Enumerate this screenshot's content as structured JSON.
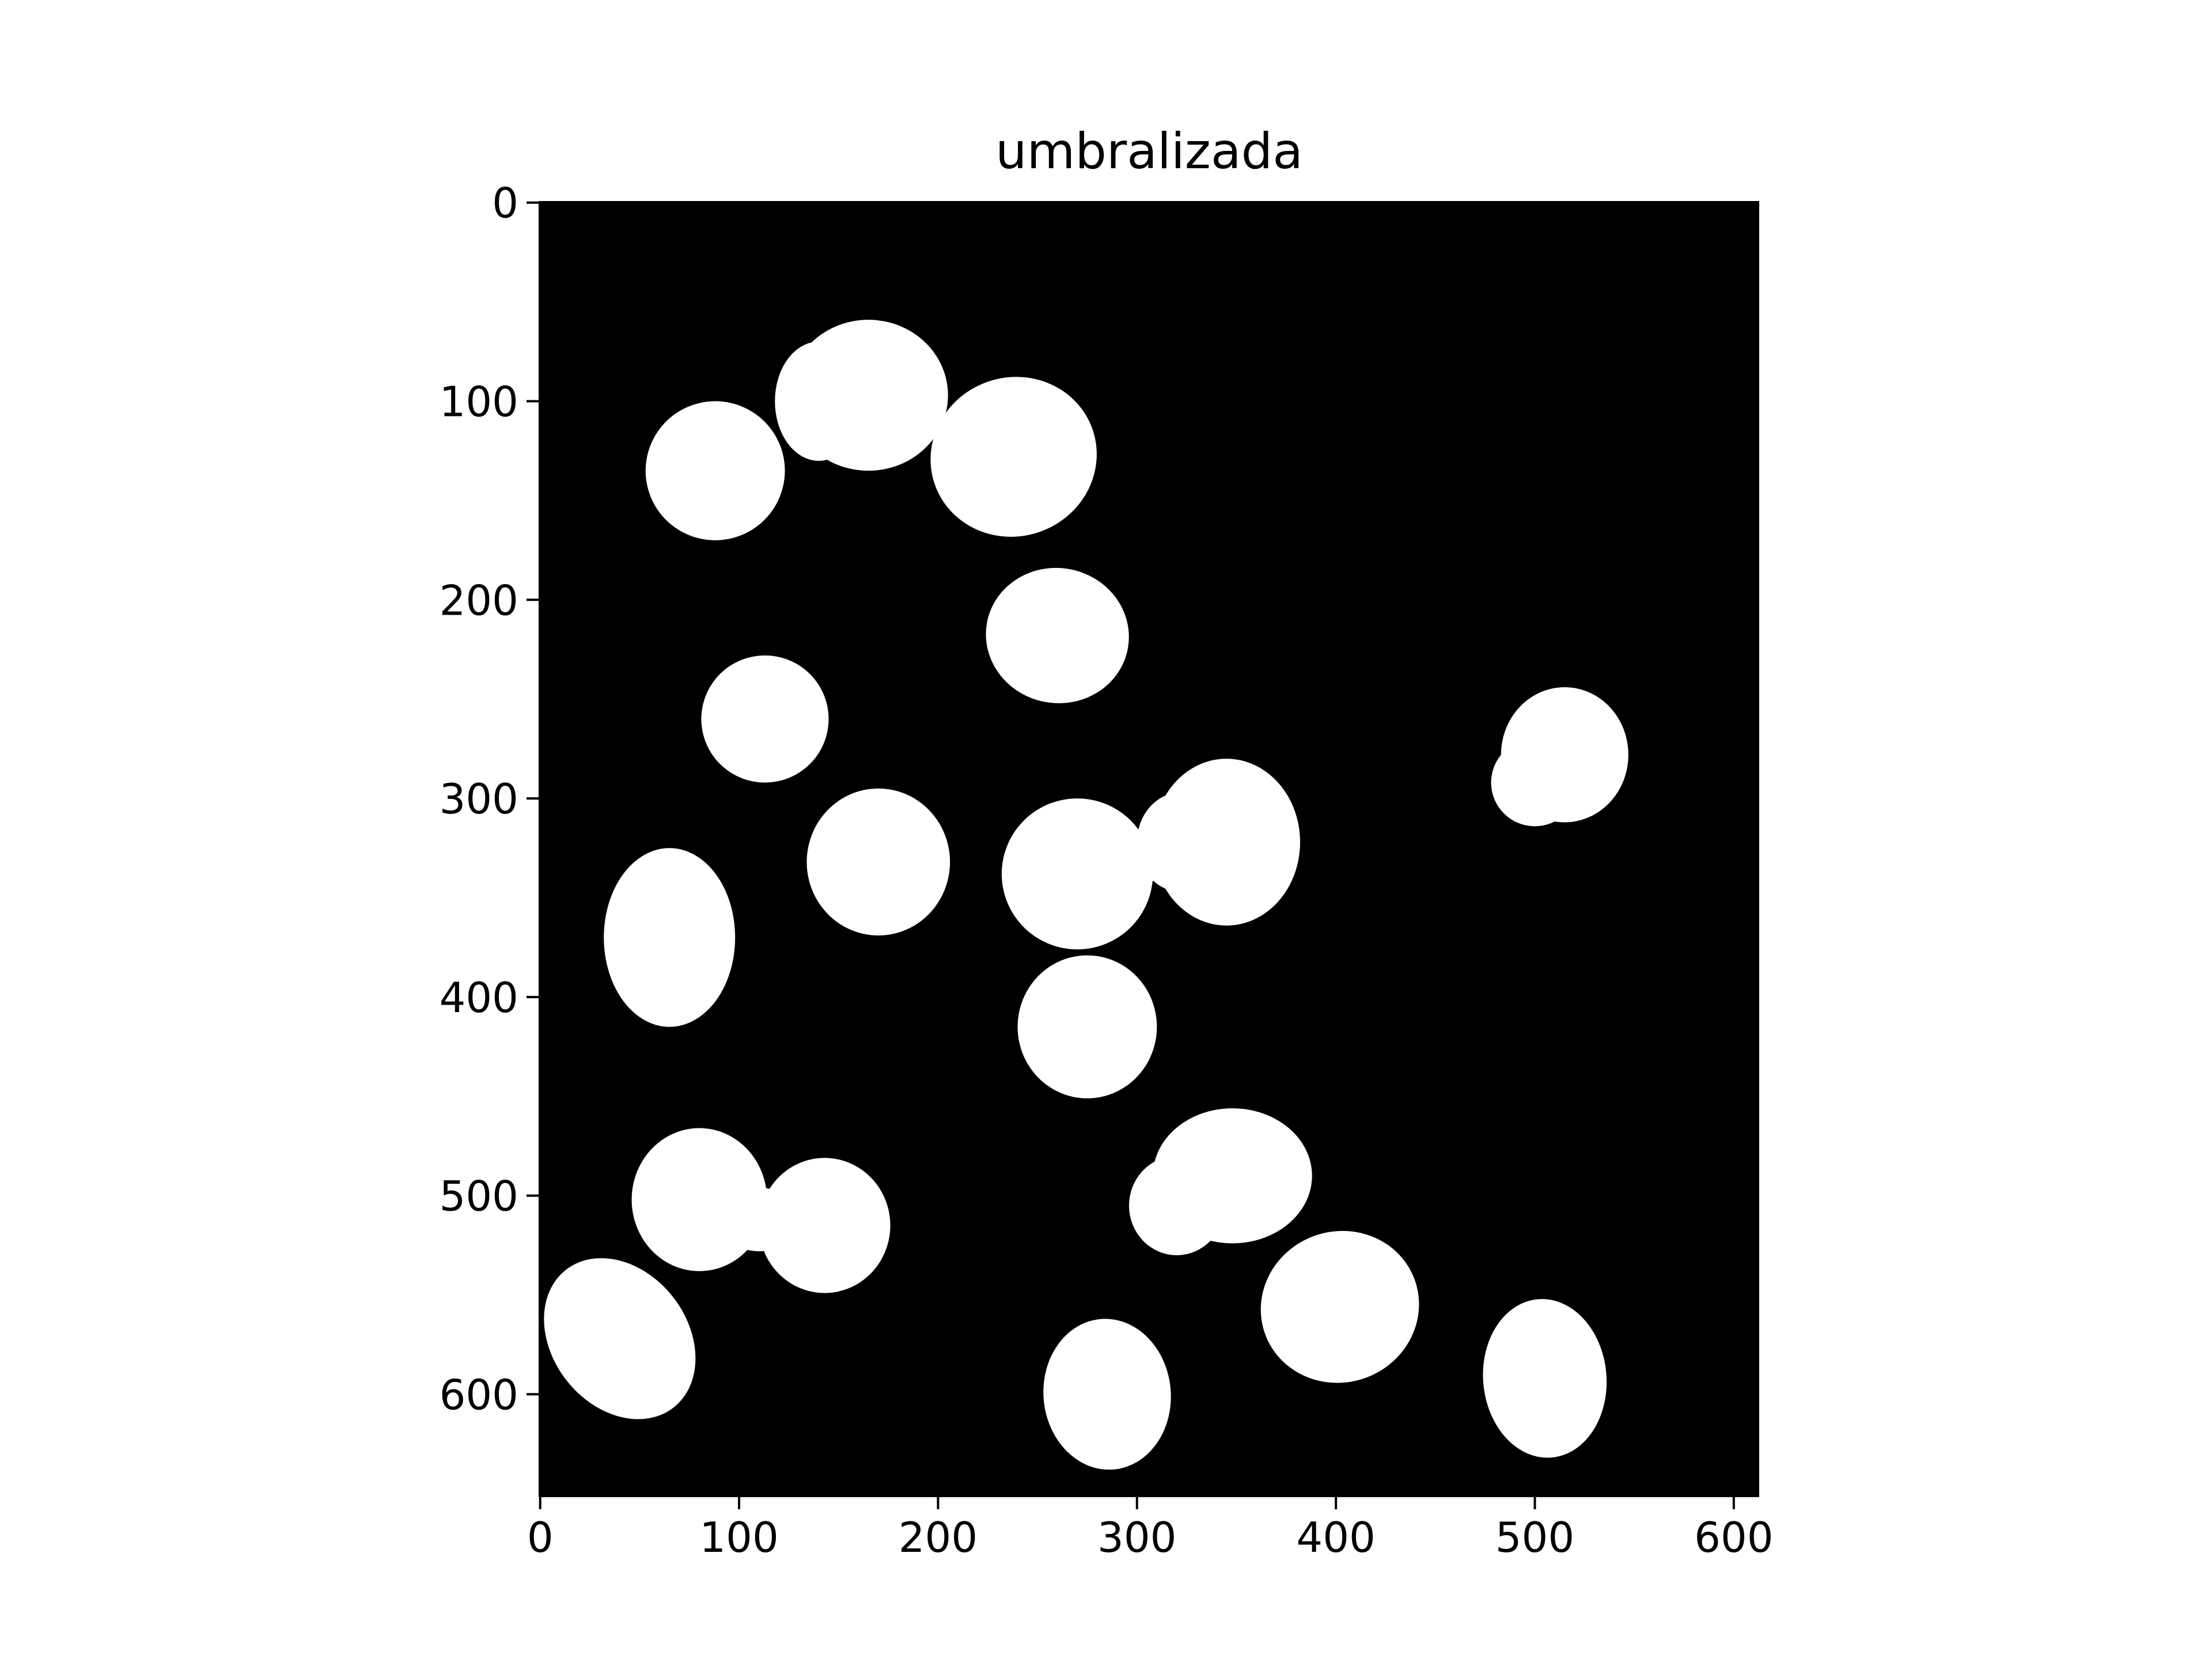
{
  "chart_data": {
    "type": "image",
    "title": "umbralizada",
    "xlim": [
      -0.5,
      612.5
    ],
    "ylim": [
      651.5,
      -0.5
    ],
    "xticks": [
      0,
      100,
      200,
      300,
      400,
      500,
      600
    ],
    "yticks": [
      0,
      100,
      200,
      300,
      400,
      500,
      600
    ],
    "background_color": "#000000",
    "foreground_color": "#ffffff"
  }
}
